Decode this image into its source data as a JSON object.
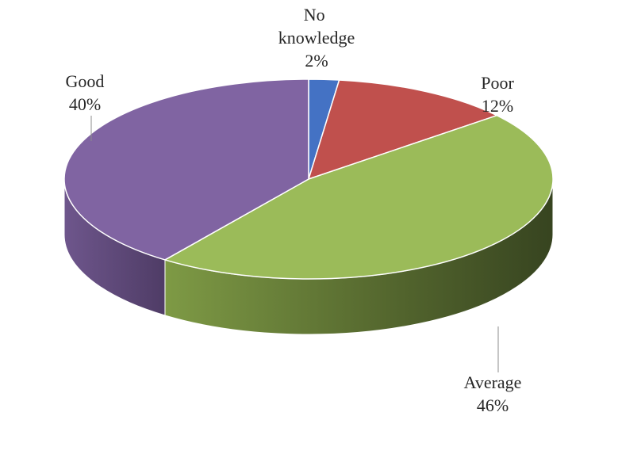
{
  "chart_data": {
    "type": "pie",
    "title": "",
    "style": "3d",
    "slices": [
      {
        "label": "No knowledge",
        "value": 2,
        "display": "2%",
        "color": "#4472c4"
      },
      {
        "label": "Poor",
        "value": 12,
        "display": "12%",
        "color": "#c0504d"
      },
      {
        "label": "Average",
        "value": 46,
        "display": "46%",
        "color": "#9bbb59"
      },
      {
        "label": "Good",
        "value": 40,
        "display": "40%",
        "color": "#8064a2"
      }
    ],
    "legend": "none",
    "data_labels": "outside with leader lines"
  }
}
